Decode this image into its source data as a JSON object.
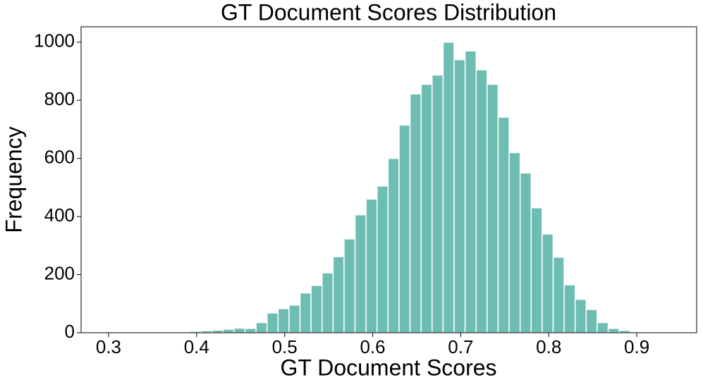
{
  "chart_data": {
    "type": "histogram",
    "title": "GT Document Scores Distribution",
    "x_label": "GT Document Scores",
    "y_label": "Frequency",
    "bins": [
      0.28,
      0.2925,
      0.305,
      0.3175,
      0.33,
      0.3425,
      0.355,
      0.3675,
      0.38,
      0.3925,
      0.405,
      0.4175,
      0.43,
      0.4425,
      0.455,
      0.4675,
      0.48,
      0.4925,
      0.505,
      0.5175,
      0.53,
      0.5425,
      0.555,
      0.5675,
      0.58,
      0.5925,
      0.605,
      0.6175,
      0.63,
      0.6425,
      0.655,
      0.6675,
      0.68,
      0.6925,
      0.705,
      0.7175,
      0.73,
      0.7425,
      0.755,
      0.7675,
      0.78,
      0.7925,
      0.805,
      0.8175,
      0.83,
      0.8425,
      0.855,
      0.8675,
      0.88,
      0.8925,
      0.905
    ],
    "values": [
      1,
      0,
      0,
      0,
      0,
      0,
      0,
      1,
      1,
      5,
      7,
      9,
      12,
      16,
      15,
      35,
      68,
      83,
      95,
      137,
      163,
      206,
      262,
      323,
      406,
      460,
      505,
      600,
      715,
      822,
      855,
      887,
      1000,
      940,
      970,
      905,
      855,
      742,
      620,
      550,
      430,
      340,
      260,
      165,
      115,
      80,
      35,
      15,
      8,
      3
    ],
    "color": "#6dbdb3",
    "xlim": [
      0.2688,
      0.968
    ],
    "xticks": [
      0.3,
      0.4,
      0.5,
      0.6,
      0.7,
      0.8,
      0.9
    ],
    "ylim": [
      0,
      1053
    ],
    "yticks": [
      0,
      200,
      400,
      600,
      800,
      1000
    ],
    "grid": false
  }
}
